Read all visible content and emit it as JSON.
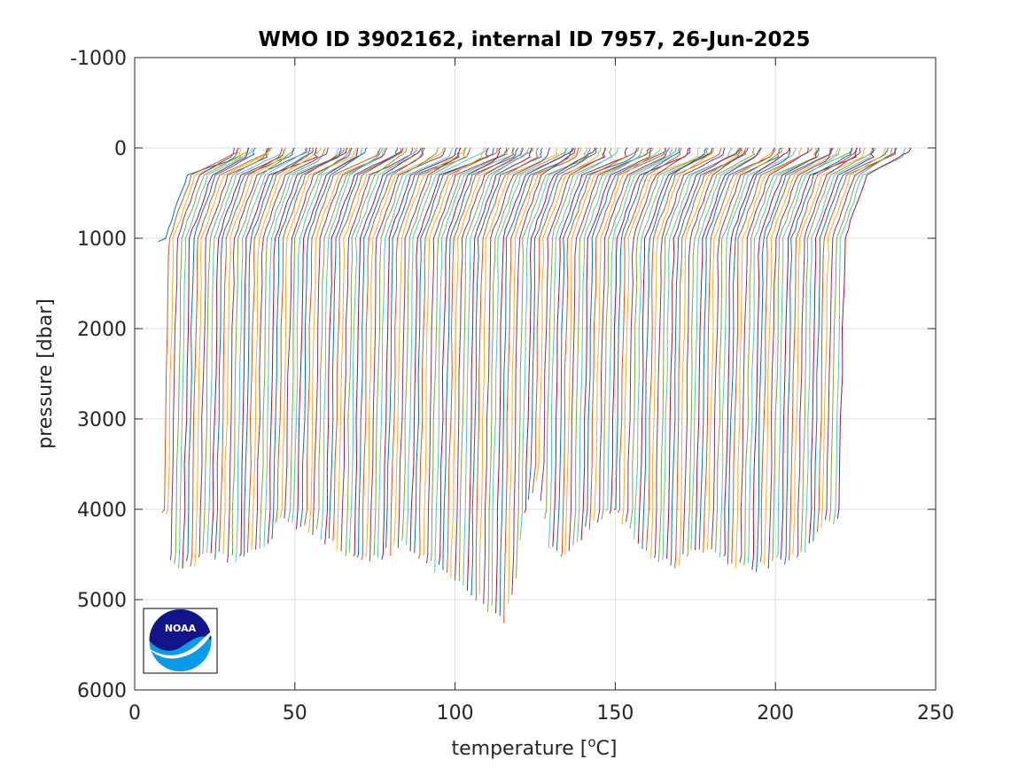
{
  "chart_data": {
    "type": "line",
    "title": "WMO ID 3902162, internal ID 7957, 26-Jun-2025",
    "xlabel": "temperature [",
    "xlabel_sup": "o",
    "xlabel_end": "C]",
    "ylabel": "pressure [dbar]",
    "xlim": [
      0,
      250
    ],
    "ylim": [
      -1000,
      6000
    ],
    "y_reversed": true,
    "grid": true,
    "x_ticks": [
      0,
      50,
      100,
      150,
      200,
      250
    ],
    "x_tick_labels": [
      "0",
      "50",
      "100",
      "150",
      "200",
      "250"
    ],
    "y_ticks": [
      -1000,
      0,
      1000,
      2000,
      3000,
      4000,
      5000,
      6000
    ],
    "y_tick_labels": [
      "-1000",
      "0",
      "1000",
      "2000",
      "3000",
      "4000",
      "5000",
      "6000"
    ],
    "profile_count": 168,
    "profile_offset_start": 5.5,
    "profile_offset_step": 1.27,
    "profile_shape_note": "each profile: warm surface temperature ~24 C at 0 dbar decreasing to ~2 C at depth; successive profiles offset in x",
    "series_colors": [
      "#0072bd",
      "#d95319",
      "#edb120",
      "#7e2f8e",
      "#77ac30",
      "#4dbeee",
      "#a2142f"
    ],
    "max_pressure_profile": [
      [
        0,
        1000
      ],
      [
        1,
        4000
      ],
      [
        2,
        4000
      ],
      [
        3,
        4600
      ],
      [
        8,
        4600
      ],
      [
        12,
        4500
      ],
      [
        20,
        4550
      ],
      [
        27,
        4400
      ],
      [
        30,
        4100
      ],
      [
        35,
        4200
      ],
      [
        40,
        4300
      ],
      [
        47,
        4500
      ],
      [
        54,
        4520
      ],
      [
        60,
        4400
      ],
      [
        65,
        4550
      ],
      [
        70,
        4700
      ],
      [
        75,
        4800
      ],
      [
        80,
        5050
      ],
      [
        85,
        5200
      ],
      [
        88,
        4800
      ],
      [
        90,
        4000
      ],
      [
        93,
        3700
      ],
      [
        96,
        4400
      ],
      [
        100,
        4500
      ],
      [
        104,
        4300
      ],
      [
        108,
        4100
      ],
      [
        112,
        4000
      ],
      [
        117,
        4300
      ],
      [
        122,
        4600
      ],
      [
        127,
        4600
      ],
      [
        132,
        4400
      ],
      [
        137,
        4500
      ],
      [
        142,
        4600
      ],
      [
        147,
        4650
      ],
      [
        150,
        4600
      ],
      [
        155,
        4550
      ],
      [
        160,
        4400
      ],
      [
        164,
        4150
      ],
      [
        167,
        4100
      ]
    ]
  },
  "logo": {
    "text": "NOAA"
  },
  "colors": {
    "grid": "#dfdfdf",
    "axis": "#262626",
    "noaa_navy": "#13138a",
    "noaa_sky": "#0a9ae8"
  }
}
